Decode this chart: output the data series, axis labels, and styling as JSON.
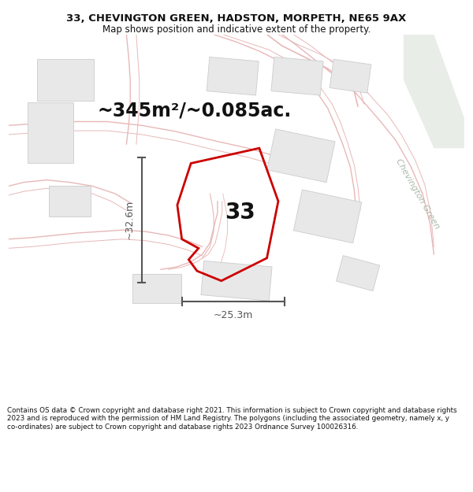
{
  "title_line1": "33, CHEVINGTON GREEN, HADSTON, MORPETH, NE65 9AX",
  "title_line2": "Map shows position and indicative extent of the property.",
  "area_text": "~345m²/~0.085ac.",
  "label_number": "33",
  "dim_height": "~32.6m",
  "dim_width": "~25.3m",
  "footer_text": "Contains OS data © Crown copyright and database right 2021. This information is subject to Crown copyright and database rights 2023 and is reproduced with the permission of HM Land Registry. The polygons (including the associated geometry, namely x, y co-ordinates) are subject to Crown copyright and database rights 2023 Ordnance Survey 100026316.",
  "bg_color": "#ffffff",
  "plot_color": "#cc0000",
  "road_label": "Chevington Green",
  "road_label_color": "#aab8aa",
  "building_fill": "#e8e8e8",
  "building_edge": "#cccccc",
  "road_fill": "#f0f0f0",
  "street_color": "#e8b8b8",
  "dim_color": "#555555",
  "label_color": "#111111",
  "figure_width": 6.0,
  "figure_height": 6.25,
  "title_fontsize": 9.5,
  "subtitle_fontsize": 8.5,
  "area_fontsize": 17,
  "label_fontsize": 20,
  "dim_fontsize": 9,
  "footer_fontsize": 6.3,
  "road_label_fontsize": 8
}
